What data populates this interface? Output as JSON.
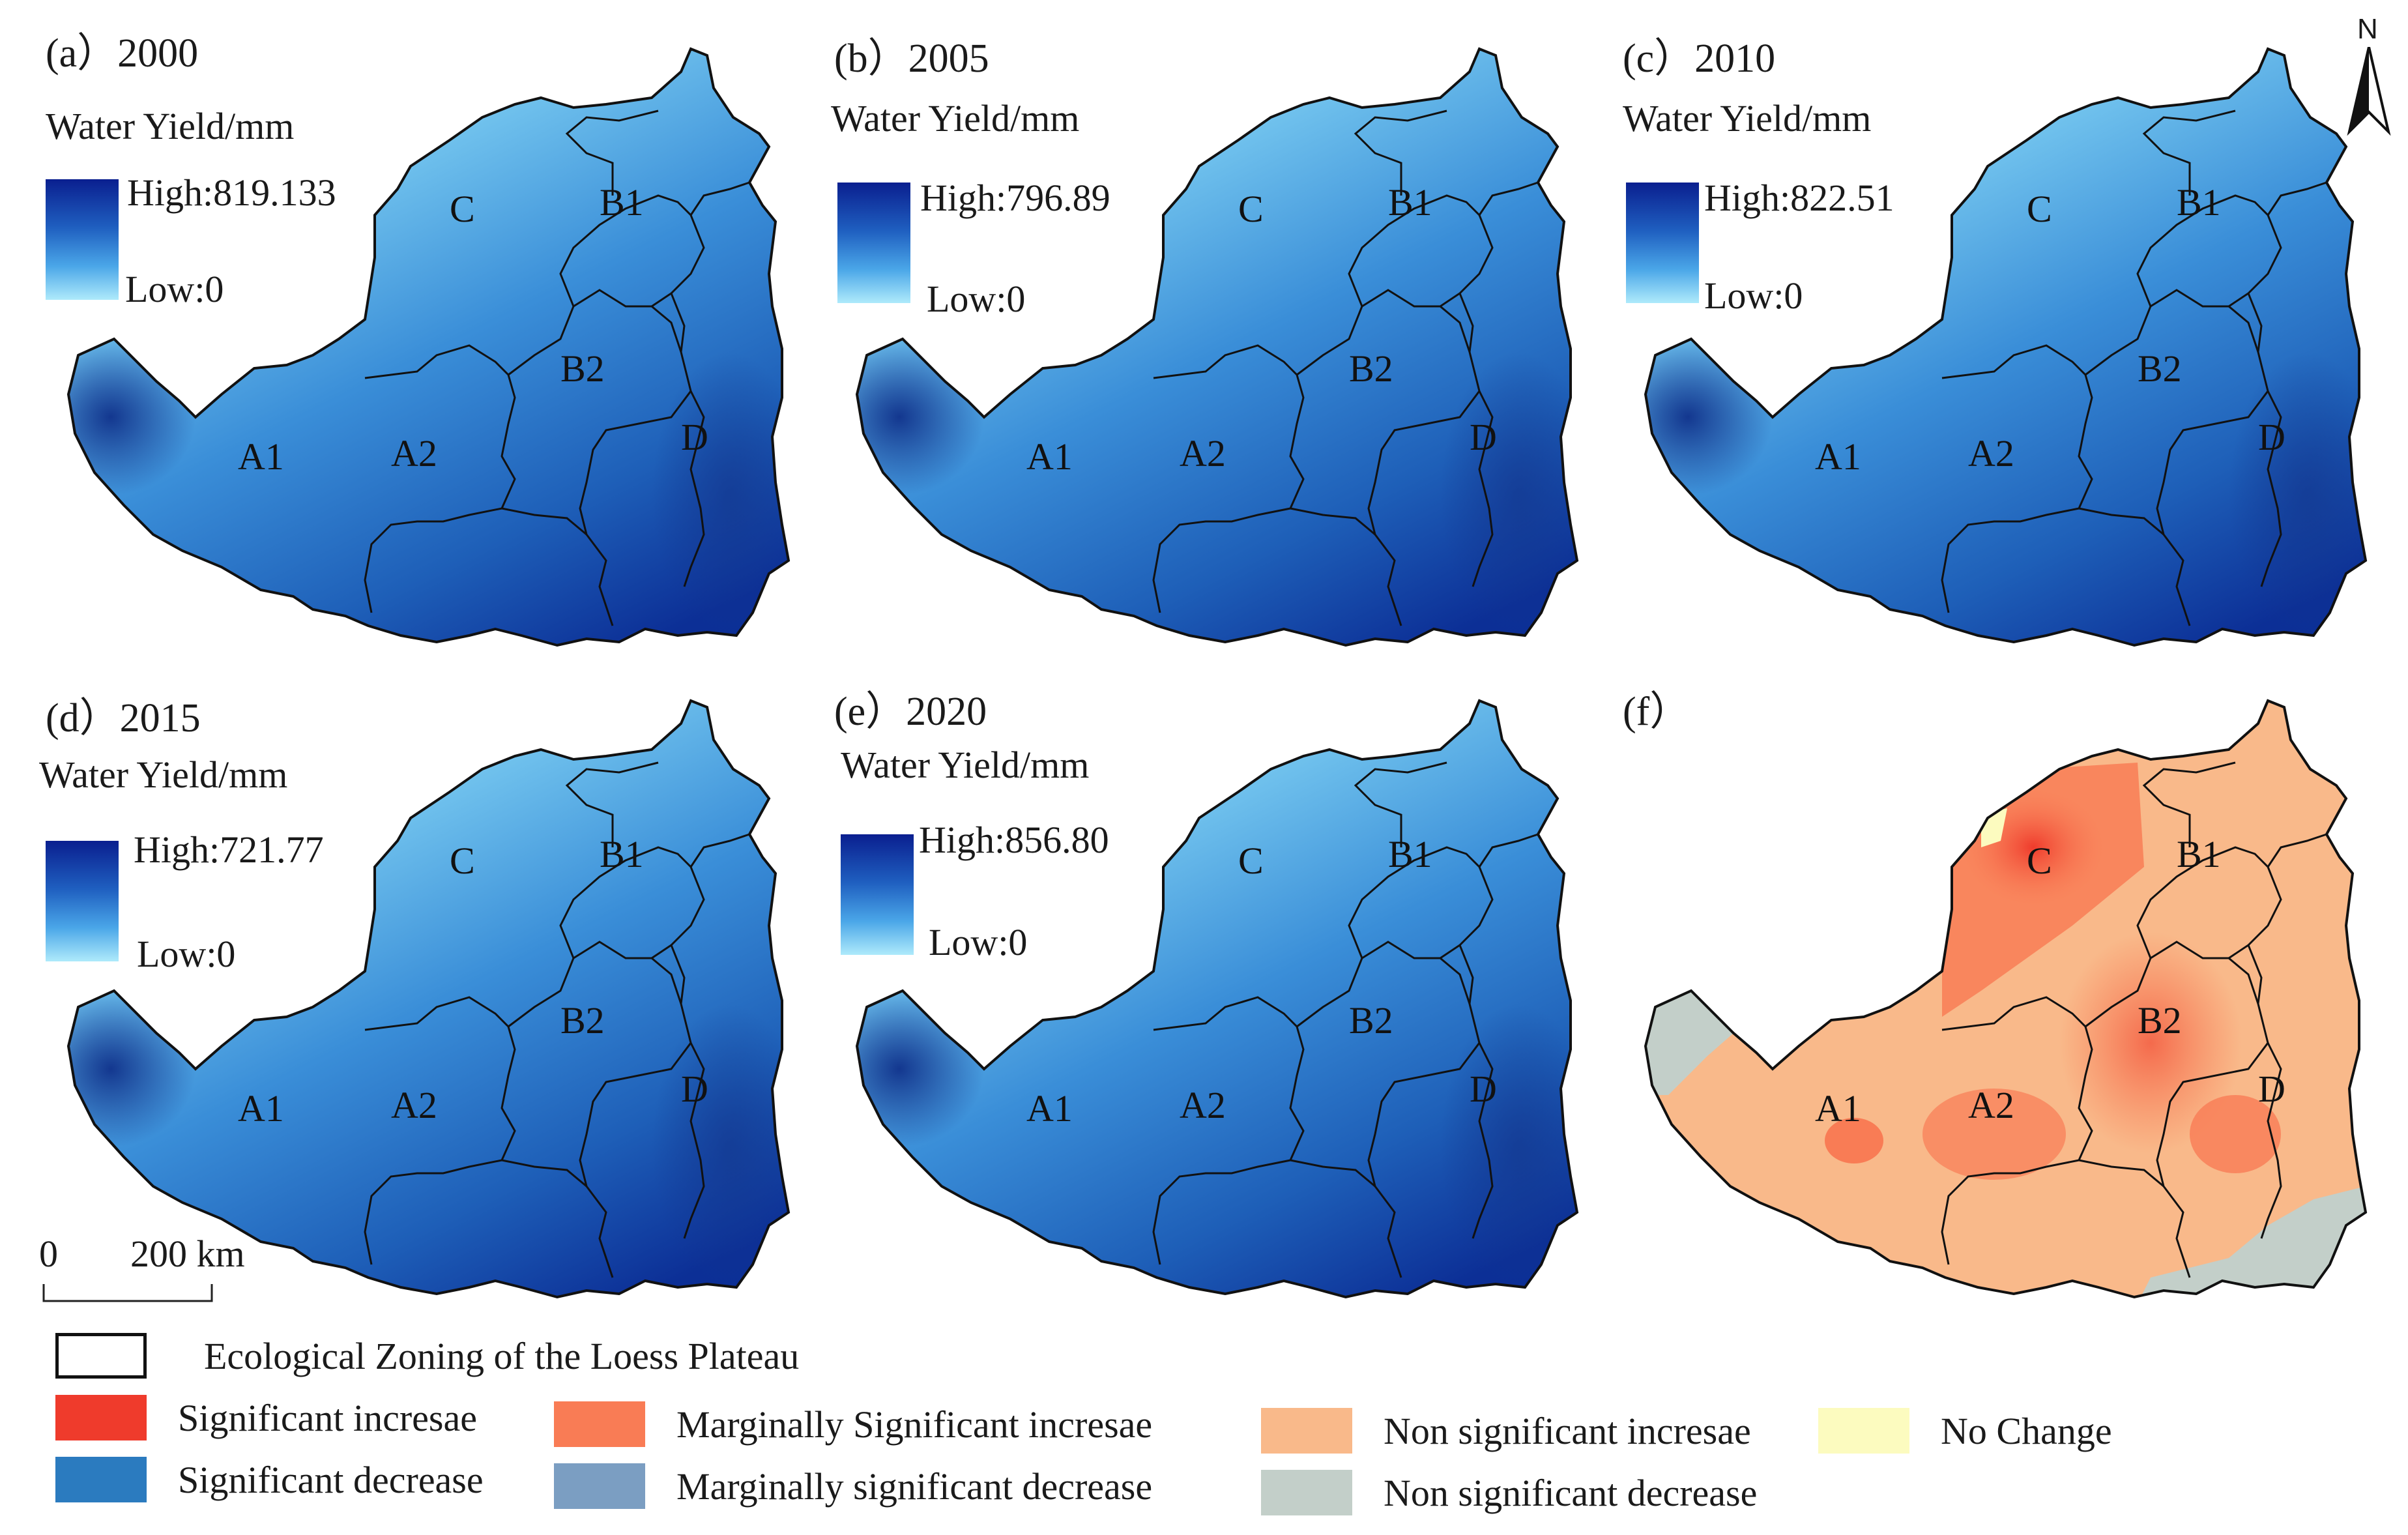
{
  "panels": [
    {
      "label": "(a）2000",
      "legend_title": "Water Yield/mm",
      "high": "High:819.133",
      "low": "Low:0"
    },
    {
      "label": "(b）2005",
      "legend_title": "Water Yield/mm",
      "high": "High:796.89",
      "low": "Low:0"
    },
    {
      "label": "(c）2010",
      "legend_title": "Water Yield/mm",
      "high": "High:822.51",
      "low": "Low:0"
    },
    {
      "label": "(d）2015",
      "legend_title": "Water Yield/mm",
      "high": "High:721.77",
      "low": "Low:0"
    },
    {
      "label": "(e）2020",
      "legend_title": "Water Yield/mm",
      "high": "High:856.80",
      "low": "Low:0"
    },
    {
      "label": "(f）"
    }
  ],
  "zones": [
    "C",
    "B1",
    "B2",
    "A1",
    "A2",
    "D"
  ],
  "north_label": "N",
  "scale": {
    "zero": "0",
    "distance": "200 km"
  },
  "legend": {
    "zoning": "Ecological Zoning of the Loess Plateau",
    "items": [
      {
        "label": "Significant incresae",
        "color": "#ef3b2c"
      },
      {
        "label": "Significant decrease",
        "color": "#2b7bbf"
      },
      {
        "label": "Marginally Significant incresae",
        "color": "#f97c55"
      },
      {
        "label": "Marginally significant decrease",
        "color": "#7b9ec2"
      },
      {
        "label": "Non significant incresae",
        "color": "#f9b98a"
      },
      {
        "label": "Non significant decrease",
        "color": "#c3cfc9"
      },
      {
        "label": "No Change",
        "color": "#fcfbbf"
      }
    ]
  },
  "colors": {
    "water_high": "#0a1f8f",
    "water_low": "#aeeafb",
    "trend_base": "#f9b98a",
    "trend_marginal": "#f97c55",
    "trend_significant": "#ef3b2c",
    "trend_decrease": "#c3cfc9"
  }
}
